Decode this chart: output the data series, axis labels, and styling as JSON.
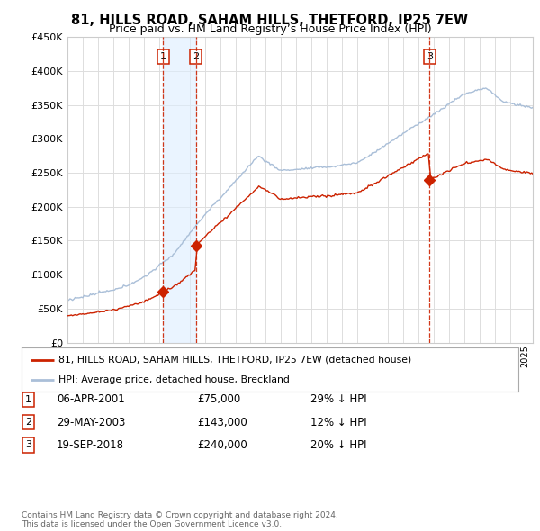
{
  "title": "81, HILLS ROAD, SAHAM HILLS, THETFORD, IP25 7EW",
  "subtitle": "Price paid vs. HM Land Registry’s House Price Index (HPI)",
  "hpi_color": "#aabfd8",
  "price_color": "#cc2200",
  "vline_color": "#cc2200",
  "shade_color": "#ddeeff",
  "background_color": "#ffffff",
  "grid_color": "#dddddd",
  "ylim": [
    0,
    450000
  ],
  "yticks": [
    0,
    50000,
    100000,
    150000,
    200000,
    250000,
    300000,
    350000,
    400000,
    450000
  ],
  "sales": [
    {
      "date_num": 2001.27,
      "price": 75000,
      "label": "1"
    },
    {
      "date_num": 2003.41,
      "price": 143000,
      "label": "2"
    },
    {
      "date_num": 2018.72,
      "price": 240000,
      "label": "3"
    }
  ],
  "legend_entries": [
    {
      "label": "81, HILLS ROAD, SAHAM HILLS, THETFORD, IP25 7EW (detached house)",
      "color": "#cc2200"
    },
    {
      "label": "HPI: Average price, detached house, Breckland",
      "color": "#aabfd8"
    }
  ],
  "table_rows": [
    {
      "num": "1",
      "date": "06-APR-2001",
      "price": "£75,000",
      "pct": "29% ↓ HPI"
    },
    {
      "num": "2",
      "date": "29-MAY-2003",
      "price": "£143,000",
      "pct": "12% ↓ HPI"
    },
    {
      "num": "3",
      "date": "19-SEP-2018",
      "price": "£240,000",
      "pct": "20% ↓ HPI"
    }
  ],
  "footer": "Contains HM Land Registry data © Crown copyright and database right 2024.\nThis data is licensed under the Open Government Licence v3.0.",
  "xmin": 1995.0,
  "xmax": 2025.5
}
